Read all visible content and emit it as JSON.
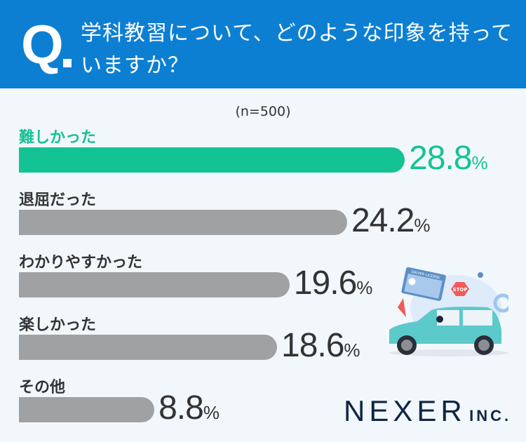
{
  "header": {
    "q": "Q",
    "question": "学科教習について、どのような印象を持っていますか？"
  },
  "chart_data": {
    "type": "bar",
    "orientation": "horizontal",
    "title": "学科教習について、どのような印象を持っていますか？",
    "sample": "(n=500)",
    "categories": [
      "難しかった",
      "退屈だった",
      "わかりやすかった",
      "楽しかった",
      "その他"
    ],
    "values": [
      28.8,
      24.2,
      19.6,
      18.6,
      8.8
    ],
    "unit": "%",
    "highlight_color": "#14c394",
    "bar_color": "#a0a1a3",
    "grid": false
  },
  "illustration": {
    "sign": "STOP",
    "card": "DRIVER LICENSE"
  },
  "logo": {
    "name": "NEXER",
    "suffix": "INC."
  }
}
